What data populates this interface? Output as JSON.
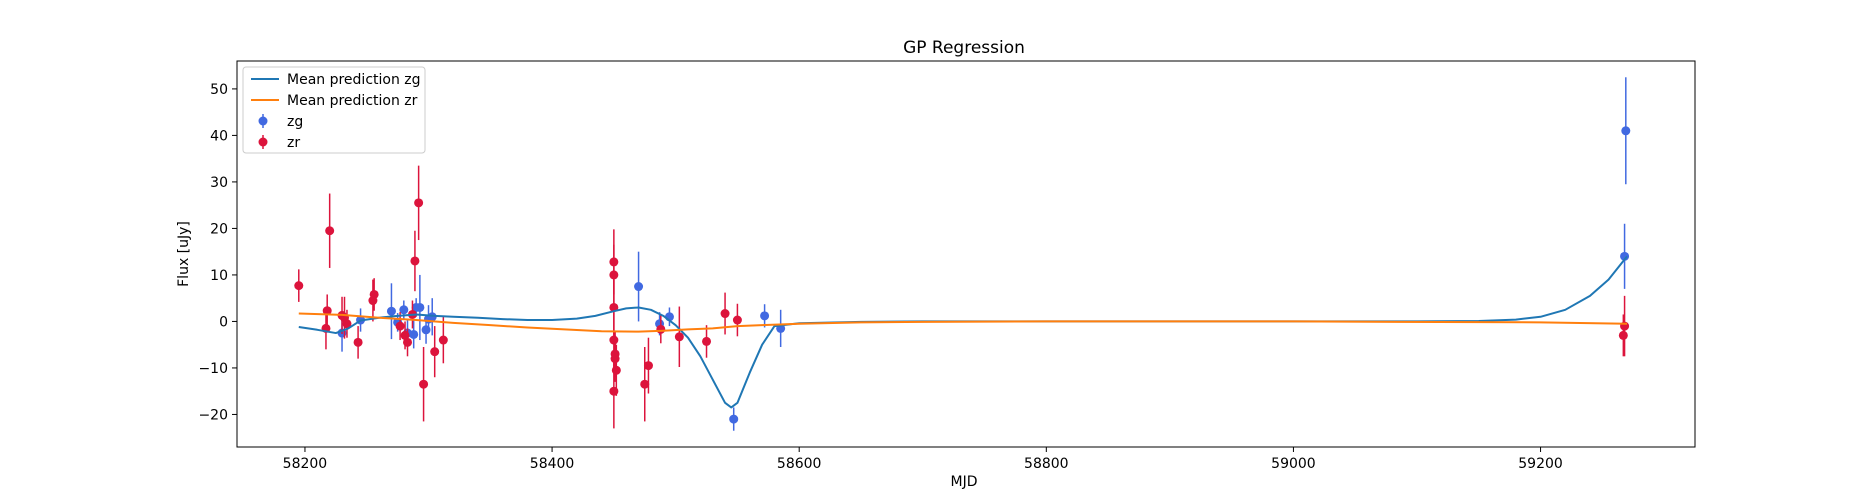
{
  "chart_data": {
    "type": "scatter",
    "title": "GP Regression",
    "xlabel": "MJD",
    "ylabel": "Flux [uJy]",
    "xlim": [
      58145,
      59325
    ],
    "ylim": [
      -27,
      56
    ],
    "xticks": [
      58200,
      58400,
      58600,
      58800,
      59000,
      59200
    ],
    "yticks": [
      -20,
      -10,
      0,
      10,
      20,
      30,
      40,
      50
    ],
    "grid": false,
    "legend_position": "top-left",
    "colors": {
      "zg_line": "#1f77b4",
      "zr_line": "#ff7f0e",
      "zg_points": "#4169e1",
      "zr_points": "#dc143c"
    },
    "lines": [
      {
        "name": "Mean prediction zg",
        "color": "#1f77b4",
        "x": [
          58195,
          58210,
          58225,
          58235,
          58245,
          58260,
          58275,
          58290,
          58305,
          58320,
          58340,
          58360,
          58380,
          58400,
          58420,
          58435,
          58450,
          58460,
          58470,
          58480,
          58490,
          58500,
          58510,
          58520,
          58530,
          58540,
          58545,
          58550,
          58560,
          58570,
          58580,
          58600,
          58650,
          58700,
          58800,
          59000,
          59100,
          59150,
          59180,
          59200,
          59220,
          59240,
          59255,
          59270
        ],
        "y": [
          -1.2,
          -1.8,
          -2.5,
          -1.5,
          0.2,
          0.8,
          1.2,
          1.5,
          1.2,
          1.0,
          0.8,
          0.5,
          0.3,
          0.3,
          0.6,
          1.2,
          2.2,
          2.8,
          3.0,
          2.5,
          1.2,
          -0.8,
          -3.5,
          -7.5,
          -12.5,
          -17.5,
          -18.5,
          -17.5,
          -11.0,
          -5.0,
          -1.0,
          -0.4,
          -0.1,
          0.0,
          0.0,
          0.0,
          0.0,
          0.1,
          0.4,
          1.0,
          2.5,
          5.5,
          9.0,
          14.0
        ]
      },
      {
        "name": "Mean prediction zr",
        "color": "#ff7f0e",
        "x": [
          58195,
          58230,
          58260,
          58290,
          58320,
          58350,
          58380,
          58410,
          58440,
          58470,
          58490,
          58510,
          58530,
          58550,
          58570,
          58600,
          58650,
          58700,
          58800,
          59000,
          59200,
          59270
        ],
        "y": [
          1.7,
          1.4,
          0.8,
          0.3,
          -0.3,
          -0.8,
          -1.3,
          -1.7,
          -2.1,
          -2.2,
          -2.0,
          -1.7,
          -1.5,
          -1.0,
          -0.8,
          -0.5,
          -0.2,
          -0.1,
          0.0,
          0.0,
          -0.2,
          -0.5
        ]
      }
    ],
    "series": [
      {
        "name": "zg",
        "color": "#4169e1",
        "points": [
          {
            "x": 58230,
            "y": -2.5,
            "err": 4.0
          },
          {
            "x": 58245,
            "y": 0.3,
            "err": 2.5
          },
          {
            "x": 58270,
            "y": 2.2,
            "err": 6.0
          },
          {
            "x": 58275,
            "y": -0.2,
            "err": 2.0
          },
          {
            "x": 58280,
            "y": 2.5,
            "err": 2.0
          },
          {
            "x": 58283,
            "y": -2.5,
            "err": 3.0
          },
          {
            "x": 58288,
            "y": -2.8,
            "err": 3.0
          },
          {
            "x": 58290,
            "y": 3.0,
            "err": 2.0
          },
          {
            "x": 58293,
            "y": 3.0,
            "err": 7.0
          },
          {
            "x": 58298,
            "y": -1.8,
            "err": 3.0
          },
          {
            "x": 58300,
            "y": 0.5,
            "err": 3.0
          },
          {
            "x": 58303,
            "y": 1.0,
            "err": 4.0
          },
          {
            "x": 58470,
            "y": 7.5,
            "err": 7.5
          },
          {
            "x": 58487,
            "y": -0.5,
            "err": 2.5
          },
          {
            "x": 58495,
            "y": 1.0,
            "err": 2.0
          },
          {
            "x": 58547,
            "y": -21.0,
            "err": 2.5
          },
          {
            "x": 58572,
            "y": 1.2,
            "err": 2.5
          },
          {
            "x": 58585,
            "y": -1.5,
            "err": 4.0
          },
          {
            "x": 59268,
            "y": 14.0,
            "err": 7.0
          },
          {
            "x": 59269,
            "y": 41.0,
            "err": 11.5
          }
        ]
      },
      {
        "name": "zr",
        "color": "#dc143c",
        "points": [
          {
            "x": 58195,
            "y": 7.7,
            "err": 3.5
          },
          {
            "x": 58217,
            "y": -1.5,
            "err": 4.5
          },
          {
            "x": 58218,
            "y": 2.3,
            "err": 3.5
          },
          {
            "x": 58220,
            "y": 19.5,
            "err": 8.0
          },
          {
            "x": 58230,
            "y": 1.3,
            "err": 4.0
          },
          {
            "x": 58232,
            "y": 0.8,
            "err": 4.5
          },
          {
            "x": 58234,
            "y": -0.5,
            "err": 3.0
          },
          {
            "x": 58243,
            "y": -4.5,
            "err": 3.5
          },
          {
            "x": 58255,
            "y": 4.5,
            "err": 4.5
          },
          {
            "x": 58256,
            "y": 5.8,
            "err": 3.5
          },
          {
            "x": 58277,
            "y": -1.0,
            "err": 3.0
          },
          {
            "x": 58281,
            "y": -3.0,
            "err": 3.0
          },
          {
            "x": 58283,
            "y": -4.5,
            "err": 3.0
          },
          {
            "x": 58287,
            "y": 1.5,
            "err": 3.0
          },
          {
            "x": 58289,
            "y": 13.0,
            "err": 6.5
          },
          {
            "x": 58292,
            "y": 25.5,
            "err": 8.0
          },
          {
            "x": 58296,
            "y": -13.5,
            "err": 8.0
          },
          {
            "x": 58305,
            "y": -6.5,
            "err": 5.5
          },
          {
            "x": 58312,
            "y": -4.0,
            "err": 5.0
          },
          {
            "x": 58450,
            "y": 12.8,
            "err": 7.0
          },
          {
            "x": 58450,
            "y": 10.0,
            "err": 6.5
          },
          {
            "x": 58450,
            "y": 3.0,
            "err": 6.0
          },
          {
            "x": 58450,
            "y": -4.0,
            "err": 6.0
          },
          {
            "x": 58451,
            "y": -7.0,
            "err": 5.0
          },
          {
            "x": 58451,
            "y": -8.0,
            "err": 5.0
          },
          {
            "x": 58452,
            "y": -10.5,
            "err": 5.5
          },
          {
            "x": 58450,
            "y": -15.0,
            "err": 8.0
          },
          {
            "x": 58475,
            "y": -13.5,
            "err": 8.0
          },
          {
            "x": 58478,
            "y": -9.5,
            "err": 6.0
          },
          {
            "x": 58488,
            "y": -1.7,
            "err": 3.0
          },
          {
            "x": 58503,
            "y": -3.3,
            "err": 6.5
          },
          {
            "x": 58525,
            "y": -4.3,
            "err": 3.5
          },
          {
            "x": 58540,
            "y": 1.7,
            "err": 4.5
          },
          {
            "x": 58550,
            "y": 0.3,
            "err": 3.5
          },
          {
            "x": 59267,
            "y": -3.0,
            "err": 4.5
          },
          {
            "x": 59268,
            "y": -1.0,
            "err": 6.5
          }
        ]
      }
    ]
  }
}
